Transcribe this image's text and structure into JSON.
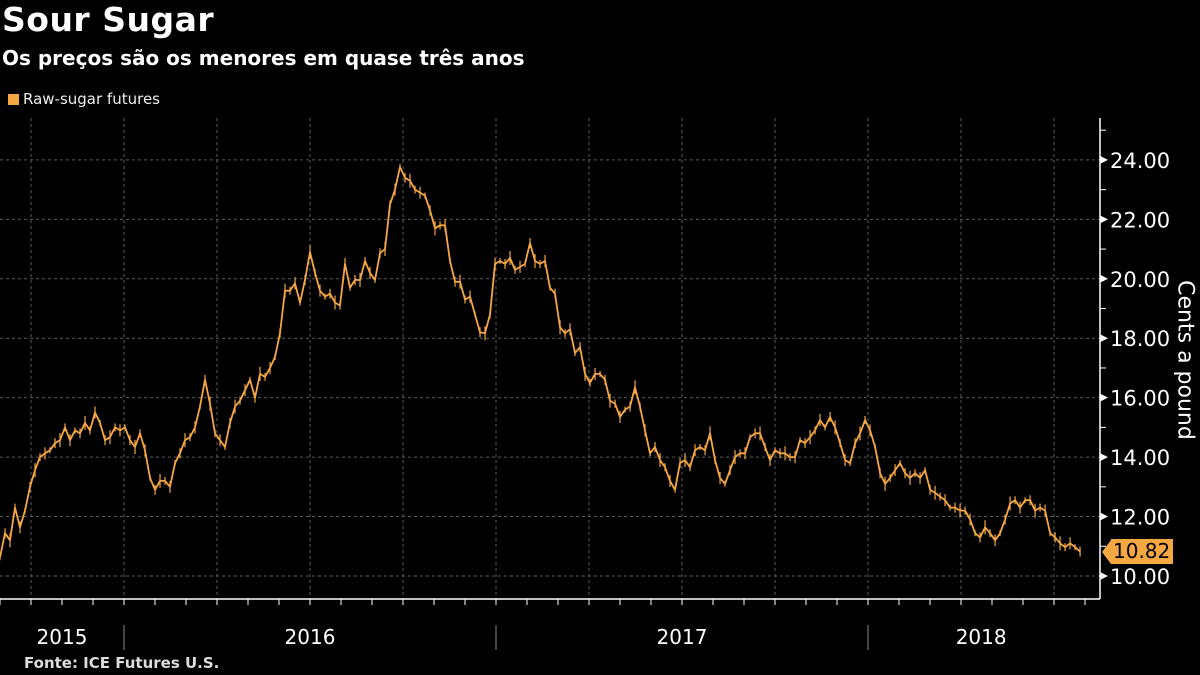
{
  "header": {
    "title": "Sour Sugar",
    "subtitle": "Os preços são os menores em quase três anos"
  },
  "footer": {
    "source": "Fonte: ICE Futures U.S."
  },
  "colors": {
    "series": "#f5a742",
    "grid": "#5a5a5a",
    "axis": "#ffffff",
    "background": "#000000"
  },
  "chart_data": {
    "type": "line",
    "title": "Sour Sugar",
    "subtitle": "Os preços são os menores em quase três anos",
    "xlabel": "",
    "ylabel": "Cents a pound",
    "legend": {
      "position": "top-left",
      "entries": [
        "Raw-sugar futures"
      ]
    },
    "ylim": [
      9.2,
      25.0
    ],
    "y_ticks": [
      10,
      12,
      14,
      16,
      18,
      20,
      22,
      24
    ],
    "y_tick_labels": [
      "10.00",
      "12.00",
      "14.00",
      "16.00",
      "18.00",
      "20.00",
      "22.00",
      "24.00"
    ],
    "x_start": "2015-09",
    "x_step_months": 0.1613,
    "x_year_labels": [
      {
        "label": "2015",
        "start_month": 0,
        "end_month": 4
      },
      {
        "label": "2016",
        "start_month": 4,
        "end_month": 16
      },
      {
        "label": "2017",
        "start_month": 16,
        "end_month": 28
      },
      {
        "label": "2018",
        "start_month": 28,
        "end_month": 35.3
      }
    ],
    "grid": true,
    "last_value": {
      "value": 10.82,
      "label": "10.82"
    },
    "series": [
      {
        "name": "Raw-sugar futures",
        "values": [
          10.63,
          11.44,
          11.2,
          12.3,
          11.64,
          12.2,
          13.0,
          13.56,
          14.0,
          14.13,
          14.23,
          14.47,
          14.57,
          15.0,
          14.57,
          14.9,
          14.8,
          15.15,
          14.9,
          15.5,
          15.15,
          14.57,
          14.67,
          15.0,
          14.9,
          15.0,
          14.57,
          14.34,
          14.8,
          14.23,
          13.3,
          12.9,
          13.2,
          13.2,
          13.0,
          13.8,
          14.13,
          14.57,
          14.67,
          15.0,
          15.7,
          16.6,
          15.8,
          14.8,
          14.57,
          14.34,
          15.15,
          15.7,
          15.9,
          16.25,
          16.6,
          16.0,
          16.8,
          16.7,
          17.0,
          17.37,
          18.17,
          19.6,
          19.6,
          19.85,
          19.2,
          19.96,
          20.9,
          20.2,
          19.6,
          19.4,
          19.5,
          19.2,
          19.1,
          20.5,
          19.7,
          19.96,
          19.96,
          20.6,
          20.2,
          19.96,
          20.86,
          21.0,
          22.5,
          23.0,
          23.76,
          23.4,
          23.3,
          23.0,
          22.9,
          22.8,
          22.3,
          21.7,
          21.8,
          21.8,
          20.6,
          19.9,
          19.9,
          19.3,
          19.4,
          18.8,
          18.2,
          18.17,
          18.8,
          20.5,
          20.6,
          20.5,
          20.7,
          20.3,
          20.4,
          20.5,
          21.2,
          20.6,
          20.5,
          20.6,
          19.7,
          19.5,
          18.37,
          18.17,
          18.3,
          17.5,
          17.7,
          16.8,
          16.5,
          16.8,
          16.8,
          16.6,
          15.9,
          15.8,
          15.35,
          15.6,
          15.7,
          16.35,
          15.7,
          14.9,
          14.13,
          14.34,
          13.9,
          13.66,
          13.2,
          12.9,
          13.8,
          13.9,
          13.66,
          14.23,
          14.34,
          14.23,
          14.8,
          13.9,
          13.3,
          13.1,
          13.56,
          14.0,
          14.13,
          14.13,
          14.67,
          14.8,
          14.8,
          14.34,
          13.9,
          14.23,
          14.13,
          14.13,
          14.0,
          14.0,
          14.57,
          14.47,
          14.67,
          14.9,
          15.25,
          15.0,
          15.35,
          15.0,
          14.47,
          13.9,
          13.8,
          14.47,
          14.8,
          15.25,
          14.9,
          14.34,
          13.46,
          13.1,
          13.3,
          13.56,
          13.8,
          13.46,
          13.3,
          13.46,
          13.3,
          13.56,
          12.9,
          12.8,
          12.67,
          12.55,
          12.3,
          12.3,
          12.2,
          12.2,
          11.9,
          11.44,
          11.3,
          11.64,
          11.44,
          11.2,
          11.44,
          11.9,
          12.44,
          12.55,
          12.3,
          12.55,
          12.55,
          12.2,
          12.3,
          12.2,
          11.44,
          11.3,
          11.1,
          10.97,
          11.1,
          10.97,
          10.82
        ]
      }
    ]
  }
}
